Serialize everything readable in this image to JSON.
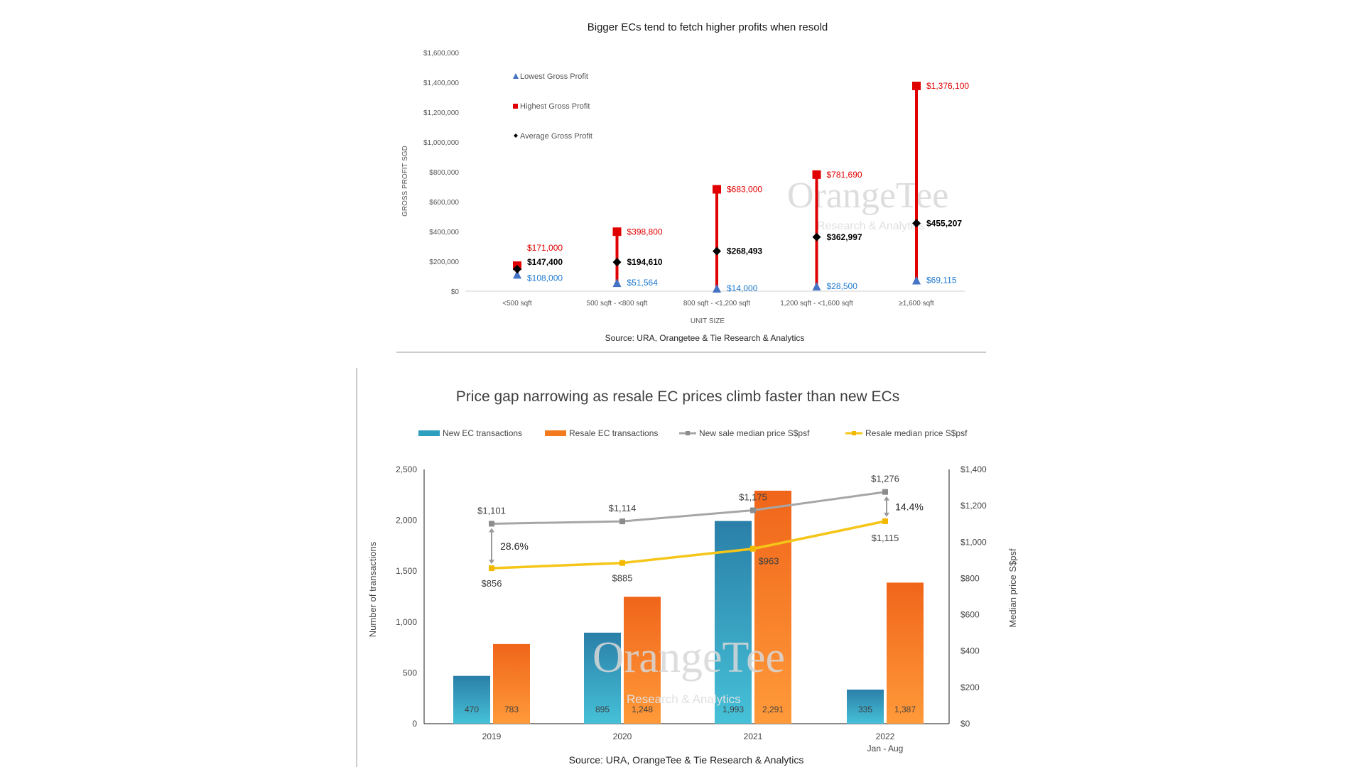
{
  "chart_data": [
    {
      "type": "scatter",
      "title": "Bigger ECs tend to fetch higher profits when resold",
      "xlabel": "UNIT SIZE",
      "ylabel": "GROSS PROFIT SGD",
      "ylim": [
        0,
        1600000
      ],
      "yticks": [
        "$0",
        "$200,000",
        "$400,000",
        "$600,000",
        "$800,000",
        "$1,000,000",
        "$1,200,000",
        "$1,400,000",
        "$1,600,000"
      ],
      "categories": [
        "<500 sqft",
        "500 sqft - <800 sqft",
        "800 sqft - <1,200 sqft",
        "1,200 sqft - <1,600 sqft",
        "≥1,600 sqft"
      ],
      "series": [
        {
          "name": "Lowest Gross Profit",
          "color": "#4472c4",
          "marker": "triangle",
          "values": [
            108000,
            51564,
            14000,
            28500,
            69115
          ],
          "labels": [
            "$108,000",
            "$51,564",
            "$14,000",
            "$28,500",
            "$69,115"
          ]
        },
        {
          "name": "Highest Gross Profit",
          "color": "#e00000",
          "marker": "square",
          "values": [
            171000,
            398800,
            683000,
            781690,
            1376100
          ],
          "labels": [
            "$171,000",
            "$398,800",
            "$683,000",
            "$781,690",
            "$1,376,100"
          ]
        },
        {
          "name": "Average Gross Profit",
          "color": "#000000",
          "marker": "diamond",
          "values": [
            147400,
            194610,
            268493,
            362997,
            455207
          ],
          "labels": [
            "$147,400",
            "$194,610",
            "$268,493",
            "$362,997",
            "$455,207"
          ]
        }
      ],
      "legend_position": "top-left",
      "source": "Source: URA, Orangetee & Tie Research & Analytics",
      "watermark": {
        "line1": "OrangeTee",
        "line2": "Research & Analytics"
      }
    },
    {
      "type": "bar",
      "title": "Price gap narrowing as resale EC prices climb faster than new ECs",
      "ylabel": "Number of transactions",
      "y2label": "Median price S$psf",
      "ylim": [
        0,
        2500
      ],
      "y2lim": [
        0,
        1400
      ],
      "yticks": [
        "0",
        "500",
        "1,000",
        "1,500",
        "2,000",
        "2,500"
      ],
      "y2ticks": [
        "$0",
        "$200",
        "$400",
        "$600",
        "$800",
        "$1,000",
        "$1,200",
        "$1,400"
      ],
      "categories": [
        "2019",
        "2020",
        "2021",
        "2022"
      ],
      "category_sublabels": [
        "",
        "",
        "",
        "Jan - Aug"
      ],
      "series": [
        {
          "name": "New EC transactions",
          "kind": "bar",
          "color": "#2f9fc0",
          "values": [
            470,
            895,
            1993,
            335
          ],
          "labels": [
            "470",
            "895",
            "1,993",
            "335"
          ]
        },
        {
          "name": "Resale EC transactions",
          "kind": "bar",
          "color": "#f37a1f",
          "values": [
            783,
            1248,
            2291,
            1387
          ],
          "labels": [
            "783",
            "1,248",
            "2,291",
            "1,387"
          ]
        },
        {
          "name": "New sale median price S$psf",
          "kind": "line",
          "axis": "right",
          "color": "#a6a6a6",
          "values": [
            1101,
            1114,
            1175,
            1276
          ],
          "labels": [
            "$1,101",
            "$1,114",
            "$1,175",
            "$1,276"
          ]
        },
        {
          "name": "Resale median price S$psf",
          "kind": "line",
          "axis": "right",
          "color": "#f5c518",
          "values": [
            856,
            885,
            963,
            1115
          ],
          "labels": [
            "$856",
            "$885",
            "$963",
            "$1,115"
          ]
        }
      ],
      "gap_annotations": [
        {
          "category": "2019",
          "text": "28.6%"
        },
        {
          "category": "2022",
          "text": "14.4%"
        }
      ],
      "legend_position": "top",
      "source": "Source: URA, OrangeTee & Tie Research & Analytics",
      "watermark": {
        "line1": "OrangeTee",
        "line2": "Research & Analytics"
      }
    }
  ]
}
